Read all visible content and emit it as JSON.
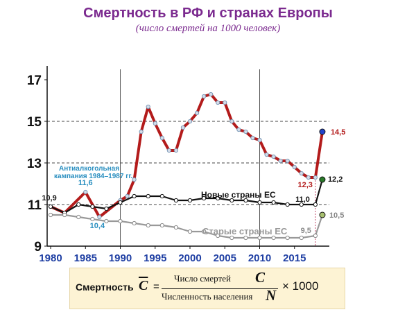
{
  "title": "Смертность в РФ и странах Европы",
  "subtitle": "(число смертей на 1000 человек)",
  "chart_data": {
    "type": "line",
    "xlim": [
      1979.5,
      2020
    ],
    "ylim": [
      9,
      17.5
    ],
    "x_ticks": [
      "1980",
      "1985",
      "1990",
      "1995",
      "2000",
      "2005",
      "2010",
      "2015"
    ],
    "y_ticks": [
      "9",
      "11",
      "13",
      "15",
      "17"
    ],
    "grid": "horizontal dashed at 11, 13, 15",
    "series": [
      {
        "name": "",
        "color": "#b31b1b",
        "x": [
          1980,
          1982,
          1985,
          1987,
          1990,
          1991,
          1992,
          1993,
          1994,
          1995,
          1996,
          1997,
          1998,
          1999,
          2000,
          2001,
          2002,
          2003,
          2004,
          2005,
          2006,
          2007,
          2008,
          2009,
          2010,
          2011,
          2012,
          2013,
          2014,
          2015,
          2016,
          2017,
          2018,
          2019
        ],
        "y": [
          10.9,
          10.6,
          11.6,
          10.4,
          11.2,
          11.4,
          12.2,
          14.5,
          15.7,
          14.9,
          14.2,
          13.6,
          13.6,
          14.7,
          15.0,
          15.4,
          16.2,
          16.3,
          15.9,
          15.9,
          15.0,
          14.6,
          14.5,
          14.2,
          14.1,
          13.4,
          13.3,
          13.1,
          13.1,
          12.8,
          12.5,
          12.3,
          12.3,
          14.5
        ]
      },
      {
        "name": "Новые страны ЕС",
        "color": "#111111",
        "x": [
          1980,
          1982,
          1984,
          1986,
          1988,
          1990,
          1992,
          1994,
          1996,
          1998,
          2000,
          2002,
          2004,
          2006,
          2008,
          2010,
          2012,
          2014,
          2016,
          2018,
          2019
        ],
        "y": [
          10.9,
          10.6,
          11.0,
          10.9,
          10.8,
          11.1,
          11.4,
          11.4,
          11.4,
          11.2,
          11.2,
          11.3,
          11.3,
          11.2,
          11.2,
          11.1,
          11.1,
          11.0,
          11.0,
          11.0,
          12.2
        ]
      },
      {
        "name": "Старые страны ЕС",
        "color": "#999999",
        "x": [
          1980,
          1982,
          1984,
          1986,
          1988,
          1990,
          1992,
          1994,
          1996,
          1998,
          2000,
          2002,
          2004,
          2006,
          2008,
          2010,
          2012,
          2014,
          2016,
          2018,
          2019
        ],
        "y": [
          10.5,
          10.5,
          10.4,
          10.3,
          10.2,
          10.2,
          10.1,
          10.0,
          10.0,
          9.9,
          9.7,
          9.7,
          9.5,
          9.4,
          9.4,
          9.4,
          9.4,
          9.4,
          9.4,
          9.5,
          10.5
        ]
      }
    ],
    "annotations": [
      {
        "text": "10,9",
        "x": 1980,
        "y": 10.9,
        "color": "#111111"
      },
      {
        "text": "11,6",
        "x": 1985,
        "y": 11.6,
        "color": "#2a8fc0"
      },
      {
        "text": "10,4",
        "x": 1987,
        "y": 10.4,
        "color": "#2a8fc0"
      },
      {
        "text": "14,5",
        "x": 2019,
        "y": 14.5,
        "color": "#b31b1b"
      },
      {
        "text": "12,3",
        "x": 2018,
        "y": 12.3,
        "color": "#b31b1b"
      },
      {
        "text": "12,2",
        "x": 2019,
        "y": 12.2,
        "color": "#111111"
      },
      {
        "text": "11,0",
        "x": 2018,
        "y": 11.0,
        "color": "#111111"
      },
      {
        "text": "9,5",
        "x": 2018,
        "y": 9.5,
        "color": "#888888"
      },
      {
        "text": "10,5",
        "x": 2019,
        "y": 10.5,
        "color": "#888888"
      }
    ],
    "campaign_note": "Антиалкогольная кампания 1984–1987 гг."
  },
  "formula": {
    "label": "Смертность",
    "symbol": "C",
    "equals": "=",
    "numerator": "Число смертей",
    "numerator_symbol": "C",
    "denominator": "Численность населения",
    "denominator_symbol": "N",
    "multiplier": "× 1000"
  },
  "colors": {
    "title": "#7b2a8f",
    "russia": "#b31b1b",
    "new_eu": "#111111",
    "old_eu": "#999999",
    "axis_labels": "#1f3fa3",
    "campaign": "#2a8fc0",
    "formula_bg": "#fdf3d4"
  }
}
